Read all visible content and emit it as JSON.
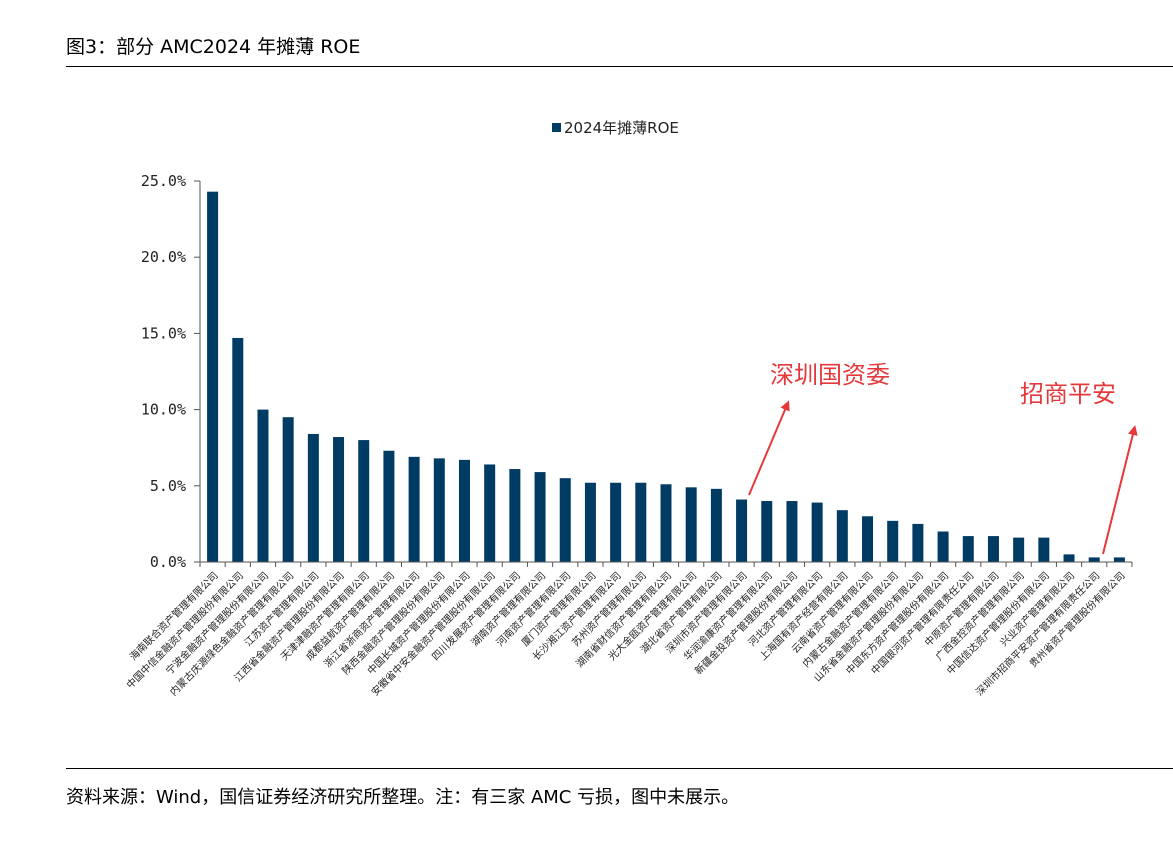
{
  "figure_title": "图3：部分 AMC2024 年摊薄 ROE",
  "source_note": "资料来源：Wind，国信证券经济研究所整理。注：有三家 AMC 亏损，图中未展示。",
  "colors": {
    "bar": "#003b64",
    "annotation": "#e5383b",
    "axis": "#555555"
  },
  "chart_data": {
    "type": "bar",
    "title": "",
    "xlabel": "",
    "ylabel": "",
    "ylim": [
      0,
      25
    ],
    "yticks": [
      "0.0%",
      "5.0%",
      "10.0%",
      "15.0%",
      "20.0%",
      "25.0%"
    ],
    "legend": {
      "label": "2024年摊薄ROE",
      "position": "top-center"
    },
    "series": [
      {
        "name": "2024年摊薄ROE",
        "values": [
          24.3,
          14.7,
          10.0,
          9.5,
          8.4,
          8.2,
          8.0,
          7.3,
          6.9,
          6.8,
          6.7,
          6.4,
          6.1,
          5.9,
          5.5,
          5.2,
          5.2,
          5.2,
          5.1,
          4.9,
          4.8,
          4.1,
          4.0,
          4.0,
          3.9,
          3.4,
          3.0,
          2.7,
          2.5,
          2.0,
          1.7,
          1.7,
          1.6,
          1.6,
          0.5,
          0.3,
          0.3
        ]
      }
    ],
    "categories": [
      "海南联合资产管理有限公司",
      "中国中信金融资产管理股份有限公司",
      "宁波金融资产管理股份有限公司",
      "内蒙古庆源绿色金融资产管理有限公司",
      "江苏资产管理有限公司",
      "江西省金融资产管理股份有限公司",
      "天津津融资产管理有限公司",
      "成都益航资产管理有限公司",
      "浙江省浙商资产管理有限公司",
      "陕西金融资产管理股份有限公司",
      "中国长城资产管理股份有限公司",
      "安徽省中安金融资产管理股份有限公司",
      "四川发展资产管理有限公司",
      "湖南资产管理有限公司",
      "河南资产管理有限公司",
      "厦门资产管理有限公司",
      "长沙湘江资产管理有限公司",
      "苏州资产管理有限公司",
      "湖南省财信资产管理有限公司",
      "光大金瓯资产管理有限公司",
      "湖北省资产管理有限公司",
      "深圳市资产管理有限公司",
      "华润渝康资产管理有限公司",
      "新疆金投资产管理股份有限公司",
      "河北资产管理有限公司",
      "上海国有资产经营有限公司",
      "云南省资产管理有限公司",
      "内蒙古金融资产管理有限公司",
      "山东省金融资产管理股份有限公司",
      "中国东方资产管理股份有限公司",
      "中国银河资产管理有限责任公司",
      "中原资产管理有限公司",
      "广西金控资产管理有限公司",
      "中国信达资产管理股份有限公司",
      "兴业资产管理有限公司",
      "深圳市招商平安资产管理有限责任公司",
      "贵州省资产管理股份有限公司"
    ],
    "annotations": [
      {
        "text": "深圳国资委",
        "category_index": 21
      },
      {
        "text": "招商平安",
        "category_index": 35
      }
    ]
  }
}
